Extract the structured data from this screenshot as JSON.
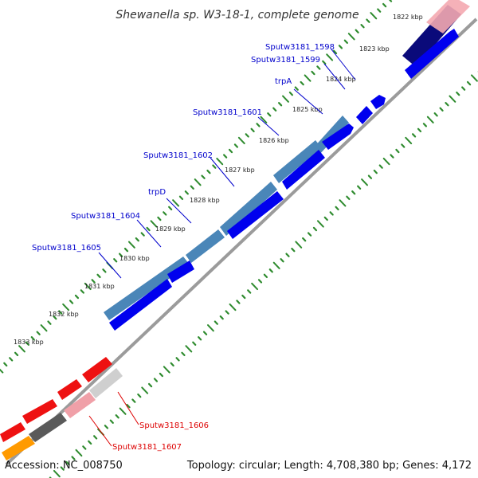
{
  "title": "Shewanella sp. W3-18-1, complete genome",
  "footer": {
    "accession": "Accession: NC_008750",
    "topology": "Topology: circular; Length: 4,708,380 bp; Genes: 4,172"
  },
  "colors": {
    "backbone": "#808080",
    "tick_marks": "#228B22",
    "forward_gene": "#0000ee",
    "forward_cds_blocks": "#4682b4",
    "reverse_gene": "#ee0000",
    "reverse_cds_blocks": "#d3d3d3",
    "label_forward": "#0000cc",
    "label_reverse": "#dd0000"
  },
  "scale_ticks": [
    "1822 kbp",
    "1823 kbp",
    "1824 kbp",
    "1825 kbp",
    "1826 kbp",
    "1827 kbp",
    "1828 kbp",
    "1829 kbp",
    "1830 kbp",
    "1831 kbp",
    "1832 kbp",
    "1833 kbp"
  ],
  "forward_gene_labels": [
    "Sputw3181_1598",
    "Sputw3181_1599",
    "trpA",
    "Sputw3181_1601",
    "Sputw3181_1602",
    "trpD",
    "Sputw3181_1604",
    "Sputw3181_1605"
  ],
  "reverse_gene_labels": [
    "Sputw3181_1606",
    "Sputw3181_1607"
  ]
}
